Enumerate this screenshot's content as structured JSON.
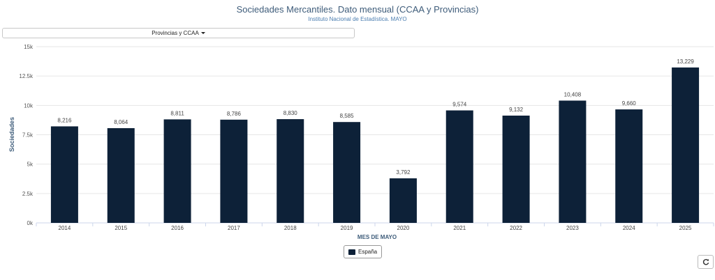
{
  "header": {
    "title": "Sociedades Mercantiles. Dato mensual (CCAA y Provincias)",
    "subtitle": "Instituto Nacional de Estadística. MAYO"
  },
  "selector": {
    "label": "Provincias y CCAA"
  },
  "legend": {
    "label": "España",
    "color": "#0d2138"
  },
  "refresh": {
    "icon": "refresh-icon"
  },
  "chart_data": {
    "type": "bar",
    "categories": [
      "2014",
      "2015",
      "2016",
      "2017",
      "2018",
      "2019",
      "2020",
      "2021",
      "2022",
      "2023",
      "2024",
      "2025"
    ],
    "series": [
      {
        "name": "España",
        "values": [
          8216,
          8064,
          8811,
          8786,
          8830,
          8585,
          3792,
          9574,
          9132,
          10408,
          9660,
          13229
        ],
        "labels": [
          "8,216",
          "8,064",
          "8,811",
          "8,786",
          "8,830",
          "8,585",
          "3,792",
          "9,574",
          "9,132",
          "10,408",
          "9,660",
          "13,229"
        ]
      }
    ],
    "xlabel": "MES DE MAYO",
    "ylabel": "Sociedades",
    "ylim": [
      0,
      15000
    ],
    "yticks": [
      {
        "value": 0,
        "label": "0k"
      },
      {
        "value": 2500,
        "label": "2.5k"
      },
      {
        "value": 5000,
        "label": "5k"
      },
      {
        "value": 7500,
        "label": "7.5k"
      },
      {
        "value": 10000,
        "label": "10k"
      },
      {
        "value": 12500,
        "label": "12.5k"
      },
      {
        "value": 15000,
        "label": "15k"
      }
    ],
    "grid": true,
    "bar_color": "#0d2138"
  }
}
